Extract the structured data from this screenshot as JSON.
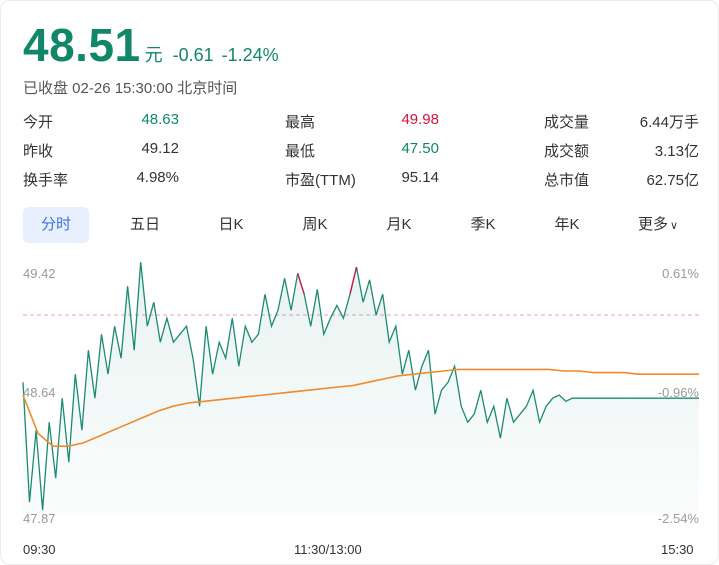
{
  "header": {
    "price": "48.51",
    "unit": "元",
    "change": "-0.61",
    "change_pct": "-1.24%",
    "status": "已收盘 02-26 15:30:00 北京时间"
  },
  "stats": [
    {
      "label": "今开",
      "value": "48.63",
      "tone": "green"
    },
    {
      "label": "最高",
      "value": "49.98",
      "tone": "red"
    },
    {
      "label": "成交量",
      "value": "6.44万手",
      "tone": "dark"
    },
    {
      "label": "昨收",
      "value": "49.12",
      "tone": "dark"
    },
    {
      "label": "最低",
      "value": "47.50",
      "tone": "green"
    },
    {
      "label": "成交额",
      "value": "3.13亿",
      "tone": "dark"
    },
    {
      "label": "换手率",
      "value": "4.98%",
      "tone": "dark"
    },
    {
      "label": "市盈(TTM)",
      "value": "95.14",
      "tone": "dark"
    },
    {
      "label": "总市值",
      "value": "62.75亿",
      "tone": "dark"
    }
  ],
  "tabs": [
    "分时",
    "五日",
    "日K",
    "周K",
    "月K",
    "季K",
    "年K",
    "更多"
  ],
  "active_tab": "分时",
  "colors": {
    "accent_green": "#11876a",
    "accent_red": "#d6143c",
    "price_line": "#1d8a73",
    "avg_line": "#f08a2e",
    "prev_close_line": "#f0a0a0",
    "tab_active_bg": "#e8f0fd",
    "tab_active_text": "#3b72e0"
  },
  "chart_data": {
    "type": "line",
    "title": "",
    "y_left_ticks": [
      "49.42",
      "48.64",
      "47.87"
    ],
    "y_right_ticks": [
      "0.61%",
      "-0.96%",
      "-2.54%"
    ],
    "x_ticks": [
      "09:30",
      "11:30/13:00",
      "15:30"
    ],
    "ylim": [
      47.87,
      49.42
    ],
    "prev_close": 49.12,
    "grid": false,
    "series": [
      {
        "values": [
          48.7,
          47.95,
          48.4,
          47.9,
          48.45,
          48.1,
          48.6,
          48.2,
          48.75,
          48.4,
          48.9,
          48.6,
          49.0,
          48.75,
          49.05,
          48.85,
          49.3,
          48.9,
          49.45,
          49.05,
          49.2,
          48.95,
          49.1,
          48.95,
          49.0,
          49.05,
          48.85,
          48.55,
          49.05,
          48.75,
          48.95,
          48.85,
          49.1,
          48.8,
          49.05,
          48.95,
          49.0,
          49.25,
          49.05,
          49.15,
          49.35,
          49.15,
          49.38,
          49.25,
          49.05,
          49.28,
          49.0,
          49.1,
          49.18,
          49.1,
          49.25,
          49.42,
          49.2,
          49.34,
          49.12,
          49.25,
          48.95,
          49.05,
          48.75,
          48.9,
          48.65,
          48.8,
          48.9,
          48.5,
          48.65,
          48.7,
          48.8,
          48.55,
          48.45,
          48.5,
          48.65,
          48.45,
          48.55,
          48.35,
          48.6,
          48.45,
          48.5,
          48.55,
          48.65,
          48.45,
          48.55,
          48.6,
          48.62,
          48.58,
          48.6,
          48.6,
          48.6,
          48.6,
          48.6,
          48.6,
          48.6,
          48.6,
          48.6
        ]
      },
      {
        "values": [
          48.62,
          48.38,
          48.3,
          48.3,
          48.32,
          48.36,
          48.4,
          48.44,
          48.48,
          48.52,
          48.55,
          48.57,
          48.58,
          48.59,
          48.6,
          48.61,
          48.62,
          48.63,
          48.64,
          48.65,
          48.66,
          48.67,
          48.68,
          48.7,
          48.72,
          48.74,
          48.75,
          48.76,
          48.77,
          48.78,
          48.78,
          48.78,
          48.78,
          48.78,
          48.78,
          48.78,
          48.77,
          48.77,
          48.76,
          48.76,
          48.76,
          48.75,
          48.75,
          48.75,
          48.75,
          48.75
        ]
      }
    ]
  }
}
